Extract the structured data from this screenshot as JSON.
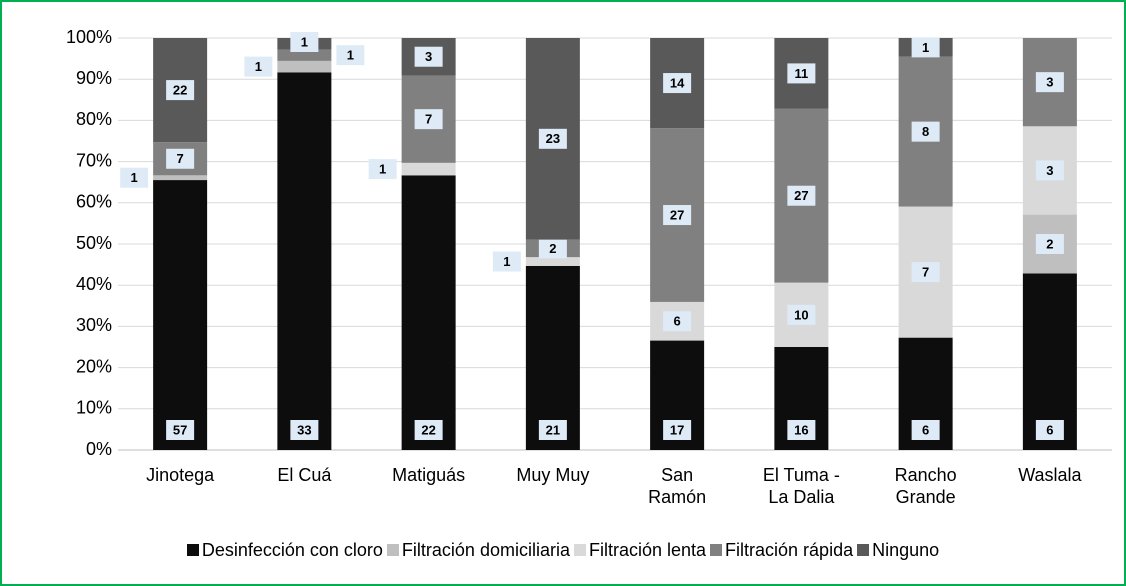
{
  "chart_data": {
    "type": "bar",
    "stacking": "percent",
    "categories": [
      "Jinotega",
      "El Cuá",
      "Matiguás",
      "Muy Muy",
      "San\nRamón",
      "El Tuma -\nLa Dalia",
      "Rancho\nGrande",
      "Waslala"
    ],
    "series": [
      {
        "name": "Desinfección con cloro",
        "color": "#0d0d0d",
        "values": [
          57,
          33,
          22,
          21,
          17,
          16,
          6,
          6
        ]
      },
      {
        "name": "Filtración domiciliaria",
        "color": "#bfbfbf",
        "values": [
          1,
          1,
          0,
          0,
          0,
          0,
          0,
          2
        ]
      },
      {
        "name": "Filtración lenta",
        "color": "#d9d9d9",
        "values": [
          0,
          0,
          1,
          1,
          6,
          10,
          7,
          3
        ]
      },
      {
        "name": "Filtración rápida",
        "color": "#808080",
        "values": [
          7,
          1,
          7,
          2,
          27,
          27,
          8,
          3
        ]
      },
      {
        "name": "Ninguno",
        "color": "#595959",
        "values": [
          22,
          1,
          3,
          23,
          14,
          11,
          1,
          0
        ]
      }
    ],
    "ylim": [
      0,
      100
    ],
    "yticks": [
      {
        "value": 0,
        "label": "0%"
      },
      {
        "value": 10,
        "label": "10%"
      },
      {
        "value": 20,
        "label": "20%"
      },
      {
        "value": 30,
        "label": "30%"
      },
      {
        "value": 40,
        "label": "40%"
      },
      {
        "value": 50,
        "label": "50%"
      },
      {
        "value": 60,
        "label": "60%"
      },
      {
        "value": 70,
        "label": "70%"
      },
      {
        "value": 80,
        "label": "80%"
      },
      {
        "value": 90,
        "label": "90%"
      },
      {
        "value": 100,
        "label": "100%"
      }
    ],
    "grid": true,
    "legend": "bottom"
  }
}
